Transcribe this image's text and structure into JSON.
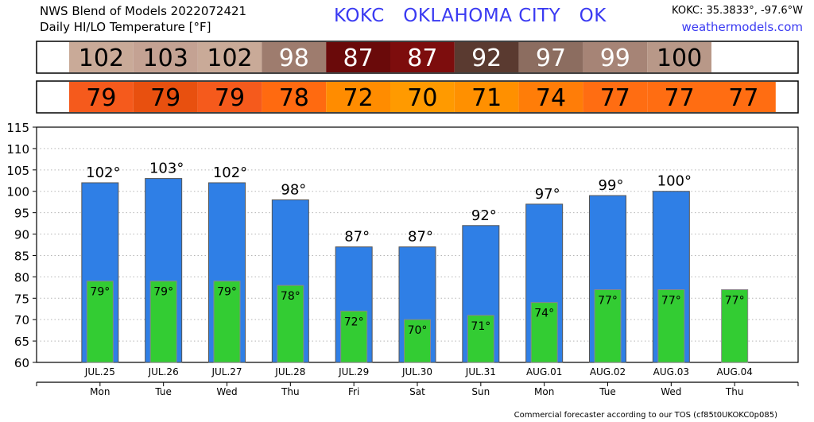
{
  "header": {
    "line1": "NWS Blend of Models 2022072421",
    "line2": "Daily HI/LO Temperature [°F]",
    "station_title": "KOKC   OKLAHOMA CITY   OK",
    "coords": "KOKC: 35.3833°, -97.6°W",
    "site": "weathermodels.com"
  },
  "footer": "Commercial forecaster according to our TOS (cf85t0UKOKC0p085)",
  "colors": {
    "hi_bar": "#2f7fe6",
    "lo_bar": "#33cc33",
    "hi_row_cells": [
      "#c9aa98",
      "#c4a293",
      "#c9aa98",
      "#9e7c6e",
      "#6a0a0a",
      "#7d0d0d",
      "#5a3a30",
      "#8c6d60",
      "#a68476",
      "#b89888",
      "#ffffff"
    ],
    "lo_row_cells": [
      "#f55a1c",
      "#e8500f",
      "#f55a1c",
      "#ff6a10",
      "#ff8c00",
      "#ff9a00",
      "#ff9000",
      "#ff7d08",
      "#ff6d12",
      "#ff6d12",
      "#ff6d12"
    ]
  },
  "hi_row_text_colors": [
    "#000000",
    "#000000",
    "#000000",
    "#ffffff",
    "#ffffff",
    "#ffffff",
    "#ffffff",
    "#ffffff",
    "#ffffff",
    "#000000",
    "#000000"
  ],
  "chart_data": {
    "type": "bar",
    "dates": [
      "JUL.25",
      "JUL.26",
      "JUL.27",
      "JUL.28",
      "JUL.29",
      "JUL.30",
      "JUL.31",
      "AUG.01",
      "AUG.02",
      "AUG.03",
      "AUG.04"
    ],
    "days": [
      "Mon",
      "Tue",
      "Wed",
      "Thu",
      "Fri",
      "Sat",
      "Sun",
      "Mon",
      "Tue",
      "Wed",
      "Thu"
    ],
    "series": [
      {
        "values": [
          102,
          103,
          102,
          98,
          87,
          87,
          92,
          97,
          99,
          100,
          null
        ]
      },
      {
        "values": [
          79,
          79,
          79,
          78,
          72,
          70,
          71,
          74,
          77,
          77,
          77
        ]
      }
    ],
    "hi_labels": [
      "102°",
      "103°",
      "102°",
      "98°",
      "87°",
      "87°",
      "92°",
      "97°",
      "99°",
      "100°",
      ""
    ],
    "lo_labels": [
      "79°",
      "79°",
      "79°",
      "78°",
      "72°",
      "70°",
      "71°",
      "74°",
      "77°",
      "77°",
      "77°"
    ],
    "hi_row": [
      "102",
      "103",
      "102",
      "98",
      "87",
      "87",
      "92",
      "97",
      "99",
      "100",
      ""
    ],
    "lo_row": [
      "79",
      "79",
      "79",
      "78",
      "72",
      "70",
      "71",
      "74",
      "77",
      "77",
      "77"
    ],
    "ylim": [
      60,
      115
    ],
    "yticks": [
      60,
      65,
      70,
      75,
      80,
      85,
      90,
      95,
      100,
      105,
      110,
      115
    ],
    "grid": true
  }
}
